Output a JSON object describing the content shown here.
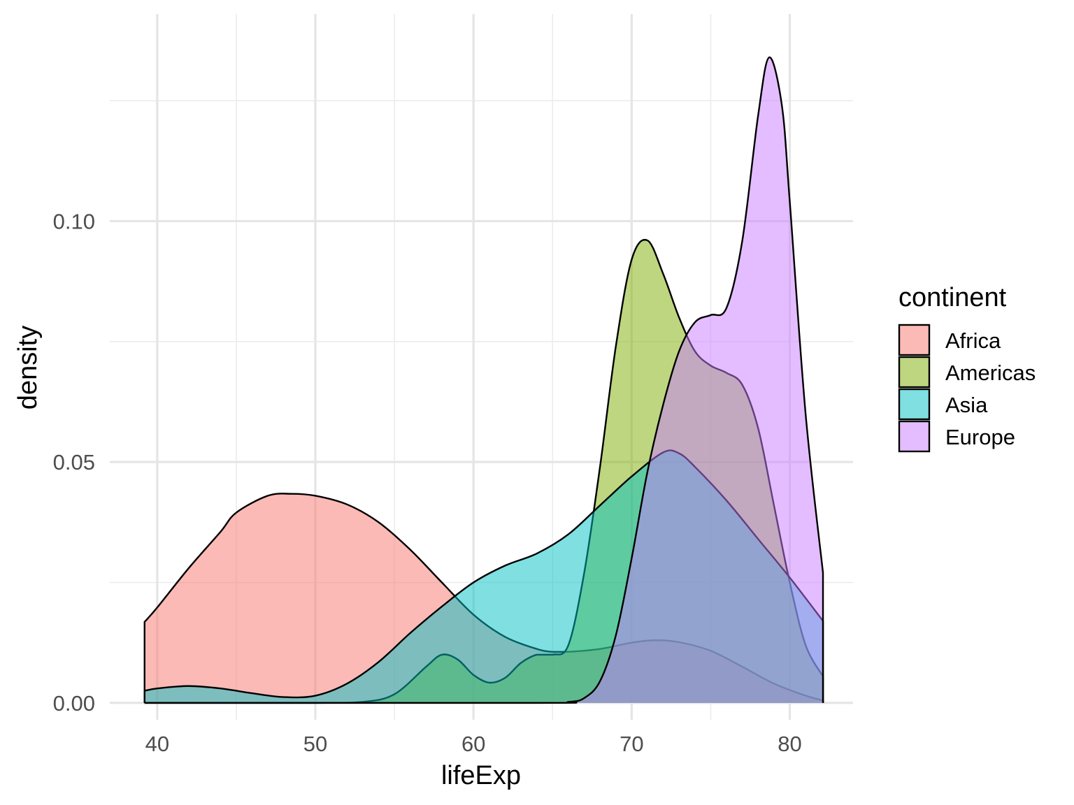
{
  "chart_data": {
    "type": "area",
    "subtype": "density",
    "xlabel": "lifeExp",
    "ylabel": "density",
    "xlim": [
      37,
      84
    ],
    "ylim": [
      -0.0035,
      0.143
    ],
    "x_ticks": [
      40,
      50,
      60,
      70,
      80
    ],
    "x_tick_labels": [
      "40",
      "50",
      "60",
      "70",
      "80"
    ],
    "y_ticks": [
      0.0,
      0.05,
      0.1
    ],
    "y_tick_labels": [
      "0.00",
      "0.05",
      "0.10"
    ],
    "grid": true,
    "legend_title": "continent",
    "legend_position": "right",
    "fill_opacity": 0.5,
    "series": [
      {
        "name": "Africa",
        "color": "#F8766D",
        "points": [
          [
            39.2,
            0.0168
          ],
          [
            40,
            0.0198
          ],
          [
            42,
            0.028
          ],
          [
            44,
            0.0355
          ],
          [
            45,
            0.0395
          ],
          [
            47,
            0.043
          ],
          [
            48.5,
            0.0434
          ],
          [
            50,
            0.043
          ],
          [
            52,
            0.0412
          ],
          [
            54,
            0.0375
          ],
          [
            56,
            0.0318
          ],
          [
            58,
            0.025
          ],
          [
            60,
            0.0183
          ],
          [
            62,
            0.0137
          ],
          [
            64,
            0.0112
          ],
          [
            65,
            0.0106
          ],
          [
            66,
            0.0106
          ],
          [
            68,
            0.0112
          ],
          [
            70,
            0.0125
          ],
          [
            71.5,
            0.013
          ],
          [
            73,
            0.0126
          ],
          [
            75,
            0.0108
          ],
          [
            77,
            0.0075
          ],
          [
            79,
            0.004
          ],
          [
            81,
            0.0015
          ],
          [
            82.1,
            0.0005
          ]
        ]
      },
      {
        "name": "Americas",
        "color": "#7CAE00",
        "points": [
          [
            39.2,
            0.0
          ],
          [
            50,
            0.0
          ],
          [
            53,
            0.0002
          ],
          [
            55,
            0.0018
          ],
          [
            57,
            0.0075
          ],
          [
            58,
            0.01
          ],
          [
            59,
            0.009
          ],
          [
            60,
            0.0058
          ],
          [
            61,
            0.0042
          ],
          [
            62,
            0.0052
          ],
          [
            63,
            0.0083
          ],
          [
            64,
            0.01
          ],
          [
            65,
            0.01
          ],
          [
            66,
            0.012
          ],
          [
            67,
            0.027
          ],
          [
            68,
            0.049
          ],
          [
            69,
            0.074
          ],
          [
            70,
            0.092
          ],
          [
            71,
            0.096
          ],
          [
            72,
            0.089
          ],
          [
            73,
            0.08
          ],
          [
            74,
            0.073
          ],
          [
            75,
            0.07
          ],
          [
            76,
            0.0685
          ],
          [
            77,
            0.066
          ],
          [
            78,
            0.057
          ],
          [
            79,
            0.041
          ],
          [
            80,
            0.025
          ],
          [
            81,
            0.012
          ],
          [
            82.1,
            0.0055
          ]
        ]
      },
      {
        "name": "Asia",
        "color": "#00BFC4",
        "points": [
          [
            39.2,
            0.0025
          ],
          [
            40,
            0.003
          ],
          [
            42,
            0.0035
          ],
          [
            44,
            0.003
          ],
          [
            46,
            0.002
          ],
          [
            48,
            0.0012
          ],
          [
            50,
            0.0015
          ],
          [
            52,
            0.004
          ],
          [
            54,
            0.0085
          ],
          [
            56,
            0.0145
          ],
          [
            58,
            0.02
          ],
          [
            60,
            0.025
          ],
          [
            62,
            0.0285
          ],
          [
            64,
            0.031
          ],
          [
            66,
            0.035
          ],
          [
            68,
            0.041
          ],
          [
            70,
            0.047
          ],
          [
            72,
            0.052
          ],
          [
            73,
            0.0518
          ],
          [
            74,
            0.049
          ],
          [
            76,
            0.042
          ],
          [
            78,
            0.034
          ],
          [
            80,
            0.026
          ],
          [
            82.1,
            0.017
          ]
        ]
      },
      {
        "name": "Europe",
        "color": "#C77CFF",
        "points": [
          [
            39.2,
            0.0
          ],
          [
            64,
            0.0
          ],
          [
            66,
            0.0002
          ],
          [
            67,
            0.001
          ],
          [
            68,
            0.0045
          ],
          [
            69,
            0.014
          ],
          [
            70,
            0.03
          ],
          [
            71,
            0.048
          ],
          [
            72,
            0.062
          ],
          [
            73,
            0.073
          ],
          [
            74,
            0.079
          ],
          [
            75,
            0.0805
          ],
          [
            76,
            0.082
          ],
          [
            77,
            0.096
          ],
          [
            78,
            0.122
          ],
          [
            78.7,
            0.134
          ],
          [
            79.5,
            0.124
          ],
          [
            80,
            0.104
          ],
          [
            81,
            0.06
          ],
          [
            82.1,
            0.027
          ]
        ]
      }
    ]
  }
}
